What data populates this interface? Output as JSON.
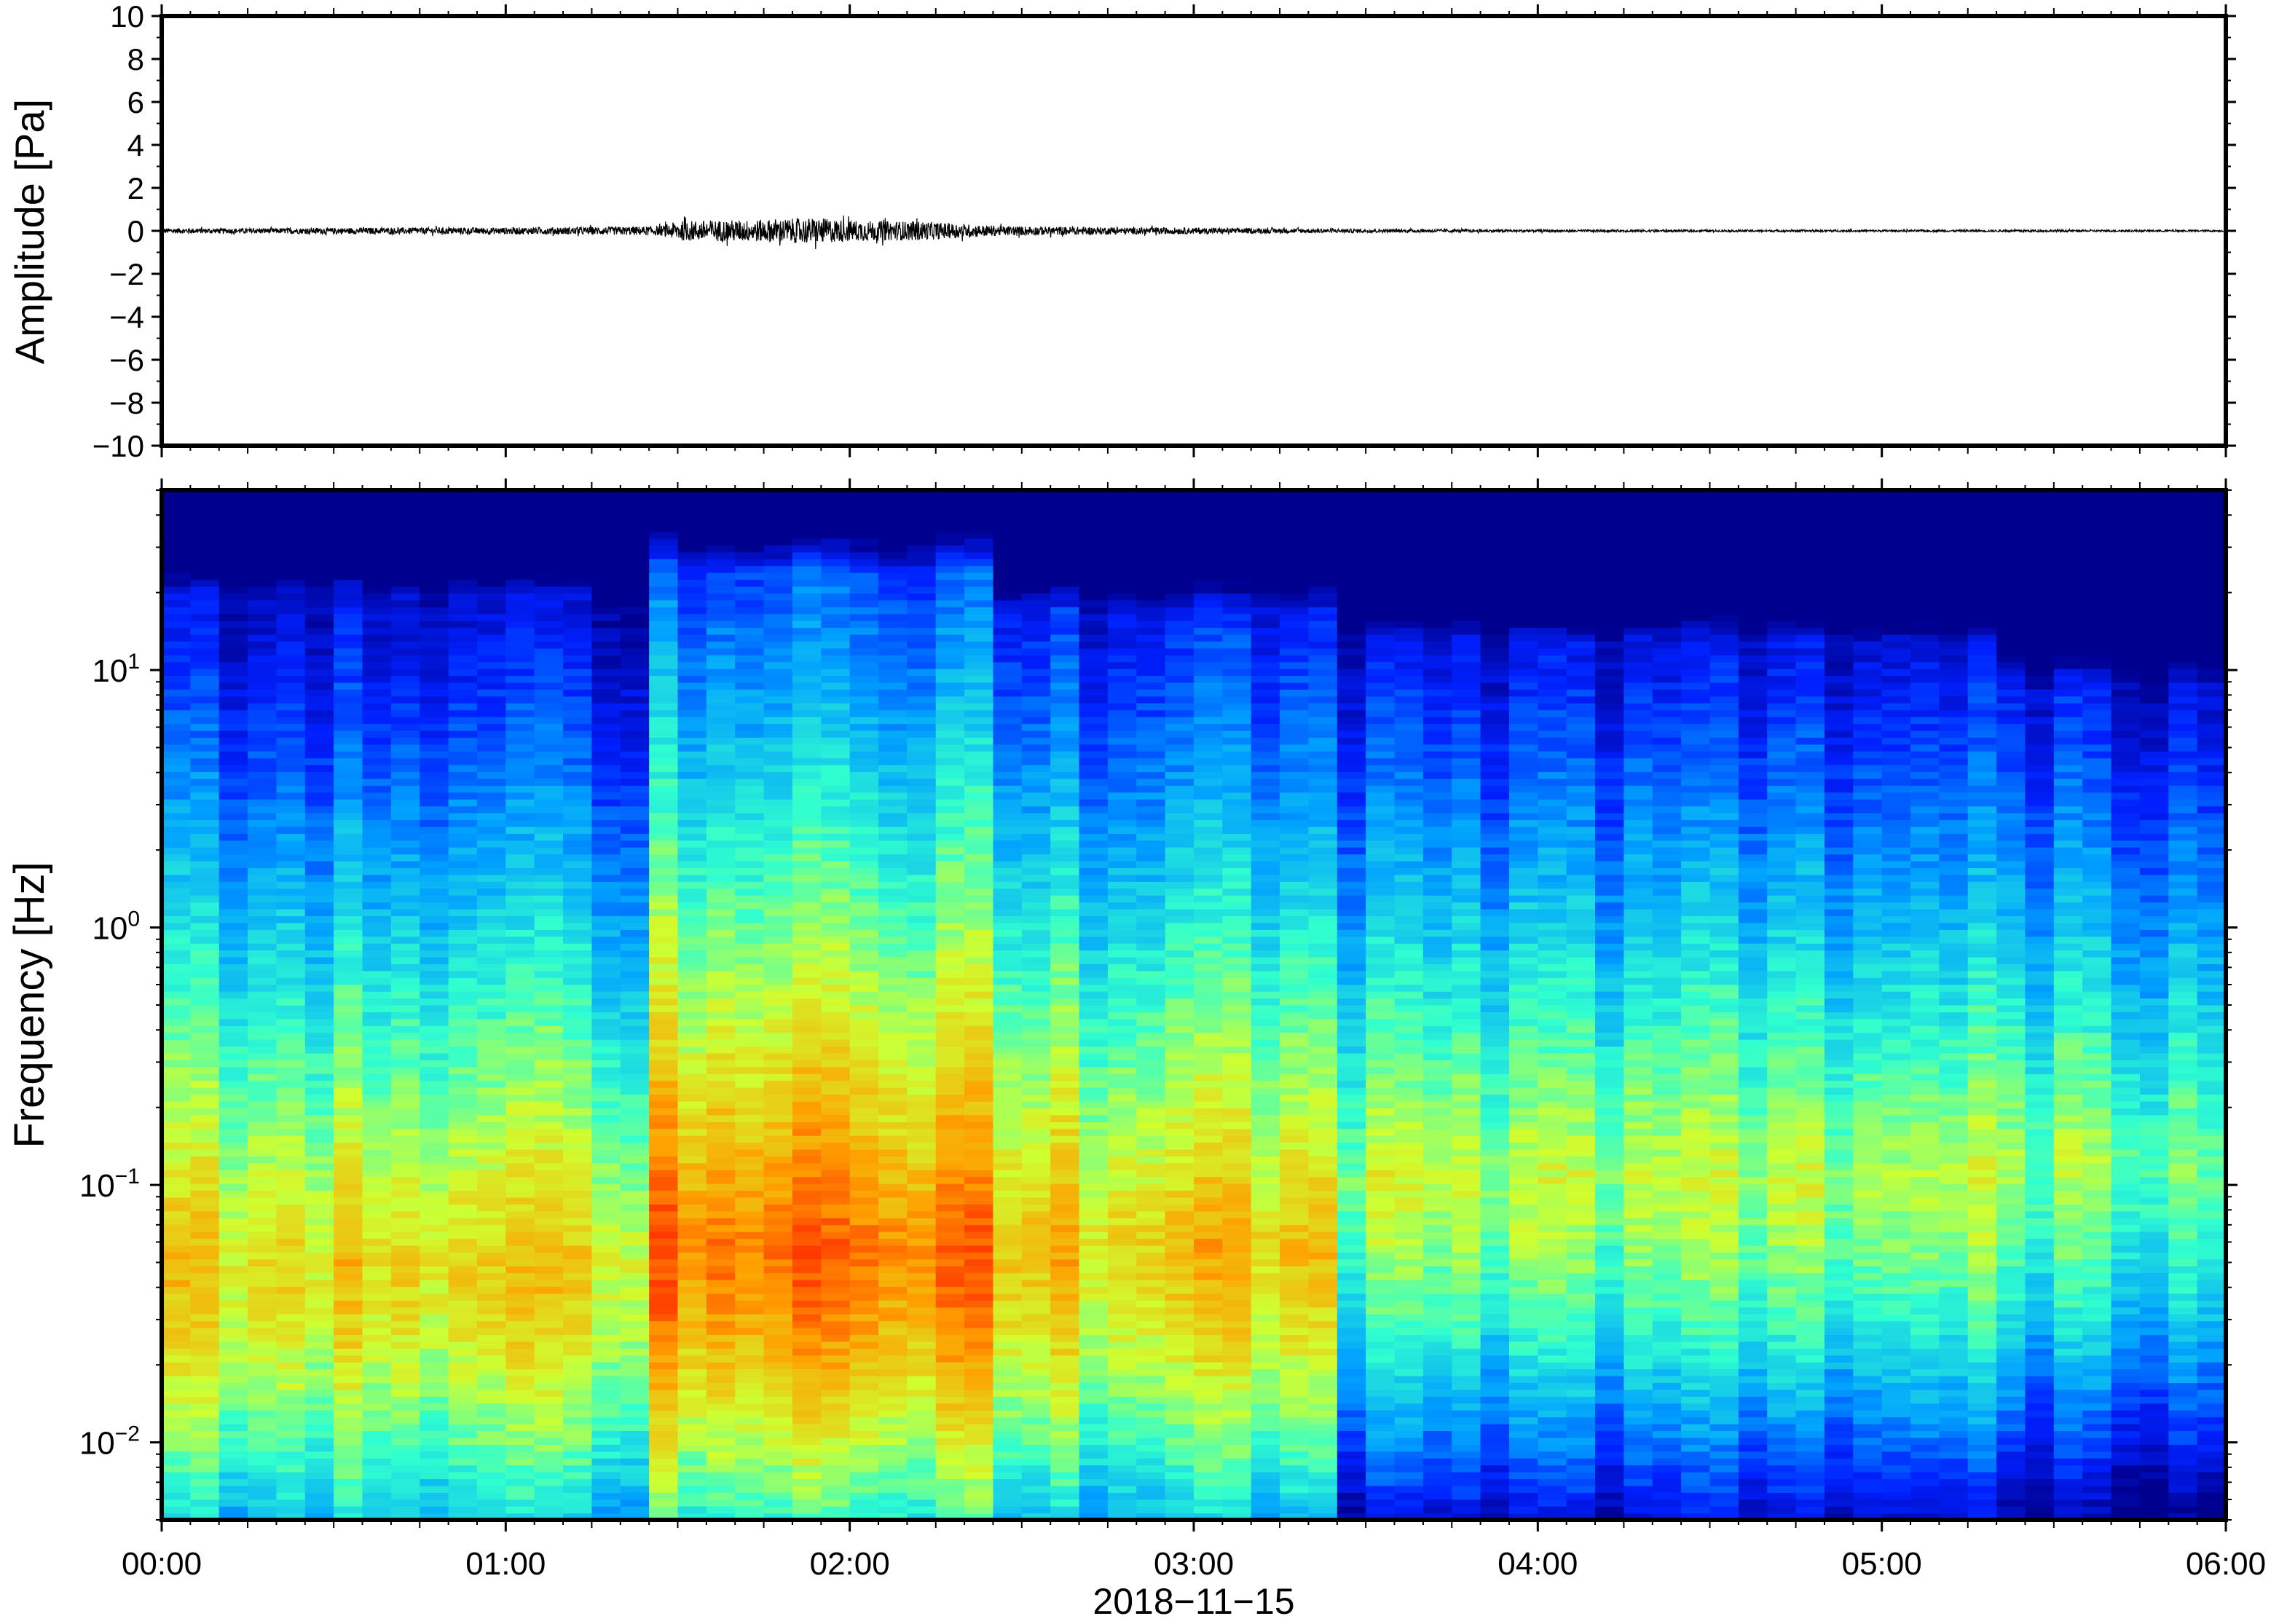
{
  "chart_data": [
    {
      "type": "line",
      "title": "",
      "xlabel": "",
      "ylabel": "Amplitude [Pa]",
      "ylim": [
        -10,
        10
      ],
      "yticks": [
        10,
        8,
        6,
        4,
        2,
        0,
        -2,
        -4,
        -6,
        -8,
        -10
      ],
      "ytick_labels": [
        "10",
        "8",
        "6",
        "4",
        "2",
        "0",
        "−2",
        "−4",
        "−6",
        "−8",
        "−10"
      ],
      "xlim_hours": [
        0,
        6
      ],
      "series": [
        {
          "color": "#000000",
          "envelope_x_hours": [
            0.0,
            0.25,
            0.5,
            0.75,
            1.0,
            1.25,
            1.45,
            1.5,
            1.6,
            1.7,
            1.8,
            1.9,
            2.0,
            2.1,
            2.2,
            2.3,
            2.45,
            2.6,
            2.8,
            3.0,
            3.2,
            3.4,
            3.6,
            3.8,
            4.0,
            4.5,
            5.0,
            5.5,
            6.0
          ],
          "envelope_amplitude": [
            0.12,
            0.12,
            0.14,
            0.15,
            0.16,
            0.18,
            0.22,
            0.45,
            0.5,
            0.5,
            0.55,
            0.6,
            0.5,
            0.45,
            0.45,
            0.35,
            0.22,
            0.2,
            0.16,
            0.15,
            0.12,
            0.1,
            0.08,
            0.07,
            0.06,
            0.05,
            0.05,
            0.05,
            0.04
          ]
        }
      ]
    },
    {
      "type": "heatmap",
      "title": "",
      "xlabel": "2018−11−15",
      "ylabel": "Frequency [Hz]",
      "yscale": "log",
      "ylim": [
        0.005,
        50
      ],
      "yticks": [
        0.01,
        0.1,
        1,
        10
      ],
      "ytick_labels": [
        {
          "base": "10",
          "exp": "−2"
        },
        {
          "base": "10",
          "exp": "−1"
        },
        {
          "base": "10",
          "exp": "0"
        },
        {
          "base": "10",
          "exp": "1"
        }
      ],
      "xticks": [
        "00:00",
        "01:00",
        "02:00",
        "03:00",
        "04:00",
        "05:00",
        "06:00"
      ],
      "colormap": "jet",
      "colors": [
        "#00008f",
        "#0020ff",
        "#00a0ff",
        "#30ffcf",
        "#cfff30",
        "#ffa000",
        "#ff2000",
        "#800000"
      ],
      "segments": [
        {
          "start_hours": 0.0,
          "end_hours": 1.45,
          "peak_freq_hz": 0.05,
          "level": 0.63,
          "rolloff_hz": 20
        },
        {
          "start_hours": 1.45,
          "end_hours": 2.45,
          "peak_freq_hz": 0.06,
          "level": 0.78,
          "rolloff_hz": 24
        },
        {
          "start_hours": 2.45,
          "end_hours": 3.38,
          "peak_freq_hz": 0.06,
          "level": 0.66,
          "rolloff_hz": 17
        },
        {
          "start_hours": 3.38,
          "end_hours": 5.3,
          "peak_freq_hz": 0.11,
          "level": 0.54,
          "rolloff_hz": 13
        },
        {
          "start_hours": 5.3,
          "end_hours": 6.0,
          "peak_freq_hz": 0.13,
          "level": 0.5,
          "rolloff_hz": 9
        }
      ]
    }
  ],
  "xtick_labels": [
    "00:00",
    "01:00",
    "02:00",
    "03:00",
    "04:00",
    "05:00",
    "06:00"
  ],
  "date_label": "2018−11−15"
}
